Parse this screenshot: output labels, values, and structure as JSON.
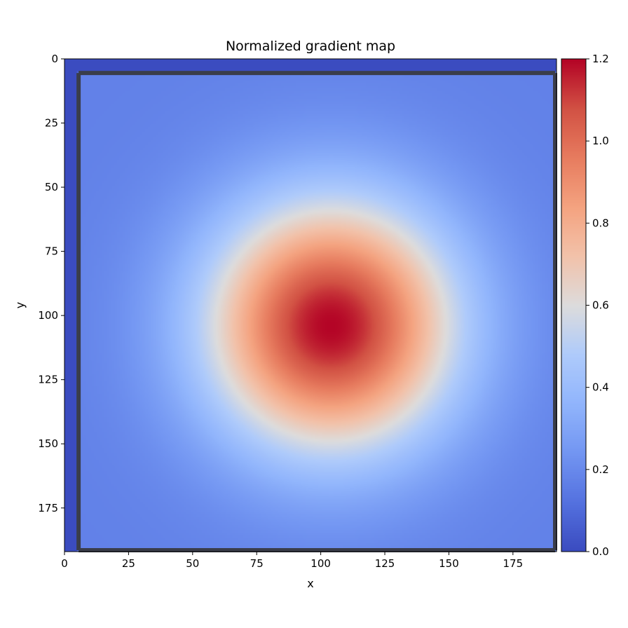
{
  "chart_data": {
    "type": "heatmap",
    "title": "Normalized gradient map",
    "xlabel": "x",
    "ylabel": "y",
    "x_range": [
      0,
      192
    ],
    "y_range": [
      0,
      192
    ],
    "y_inverted": true,
    "x_ticks": [
      0,
      25,
      50,
      75,
      100,
      125,
      150,
      175
    ],
    "y_ticks": [
      0,
      25,
      50,
      75,
      100,
      125,
      150,
      175
    ],
    "colormap": "coolwarm",
    "color_range": [
      0,
      1.2
    ],
    "colorbar_ticks": [
      "0.0",
      "0.2",
      "0.4",
      "0.6",
      "0.8",
      "1.0",
      "1.2"
    ],
    "field": {
      "description_values": "gaussian peak over flat background",
      "background_value": 0.17,
      "peak_value": 1.2,
      "peak_center": [
        104,
        104
      ],
      "peak_sigma": 34,
      "edge_value": 0.0,
      "edge_extent_left": 5,
      "edge_extent_top": 5
    },
    "frame_color": "#3a3d4a",
    "grid": false,
    "colorbar": "right"
  }
}
